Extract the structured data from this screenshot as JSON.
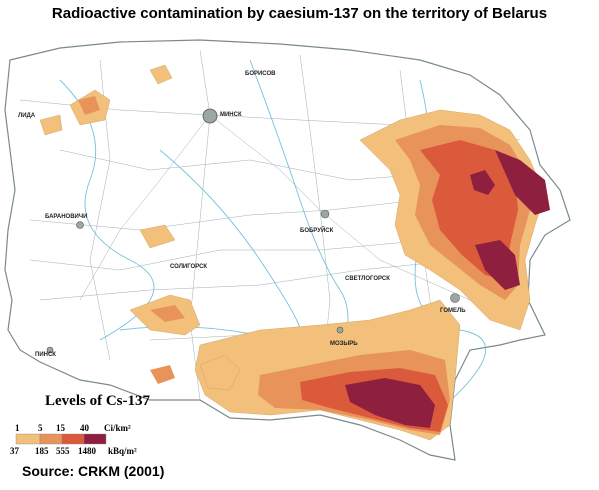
{
  "title": "Radioactive contamination by caesium-137 on the territory of Belarus",
  "source": "Source: CRKM (2001)",
  "legend": {
    "title": "Levels of  Cs-137",
    "ci_label": "Ci/km²",
    "kbq_label": "kBq/m²",
    "ci_values": [
      "1",
      "5",
      "15",
      "40"
    ],
    "kbq_values": [
      "37",
      "185",
      "555",
      "1480"
    ],
    "classes": [
      {
        "color": "#f2c07a"
      },
      {
        "color": "#e8935a"
      },
      {
        "color": "#dc5a3c"
      },
      {
        "color": "#8e1f3f"
      }
    ]
  },
  "cities": {
    "minsk": "МИНСК",
    "borisov": "БОРИСОВ",
    "baranovichi": "БАРАНОВИЧИ",
    "soligorsk": "СОЛИГОРСК",
    "bobruisk": "БОБРУЙСК",
    "svetlogorsk": "СВЕТЛОГОРСК",
    "gomel": "ГОМЕЛЬ",
    "mozyr": "МОЗЫРЬ",
    "pinsk": "ПИНСК",
    "lida": "ЛИДА"
  }
}
